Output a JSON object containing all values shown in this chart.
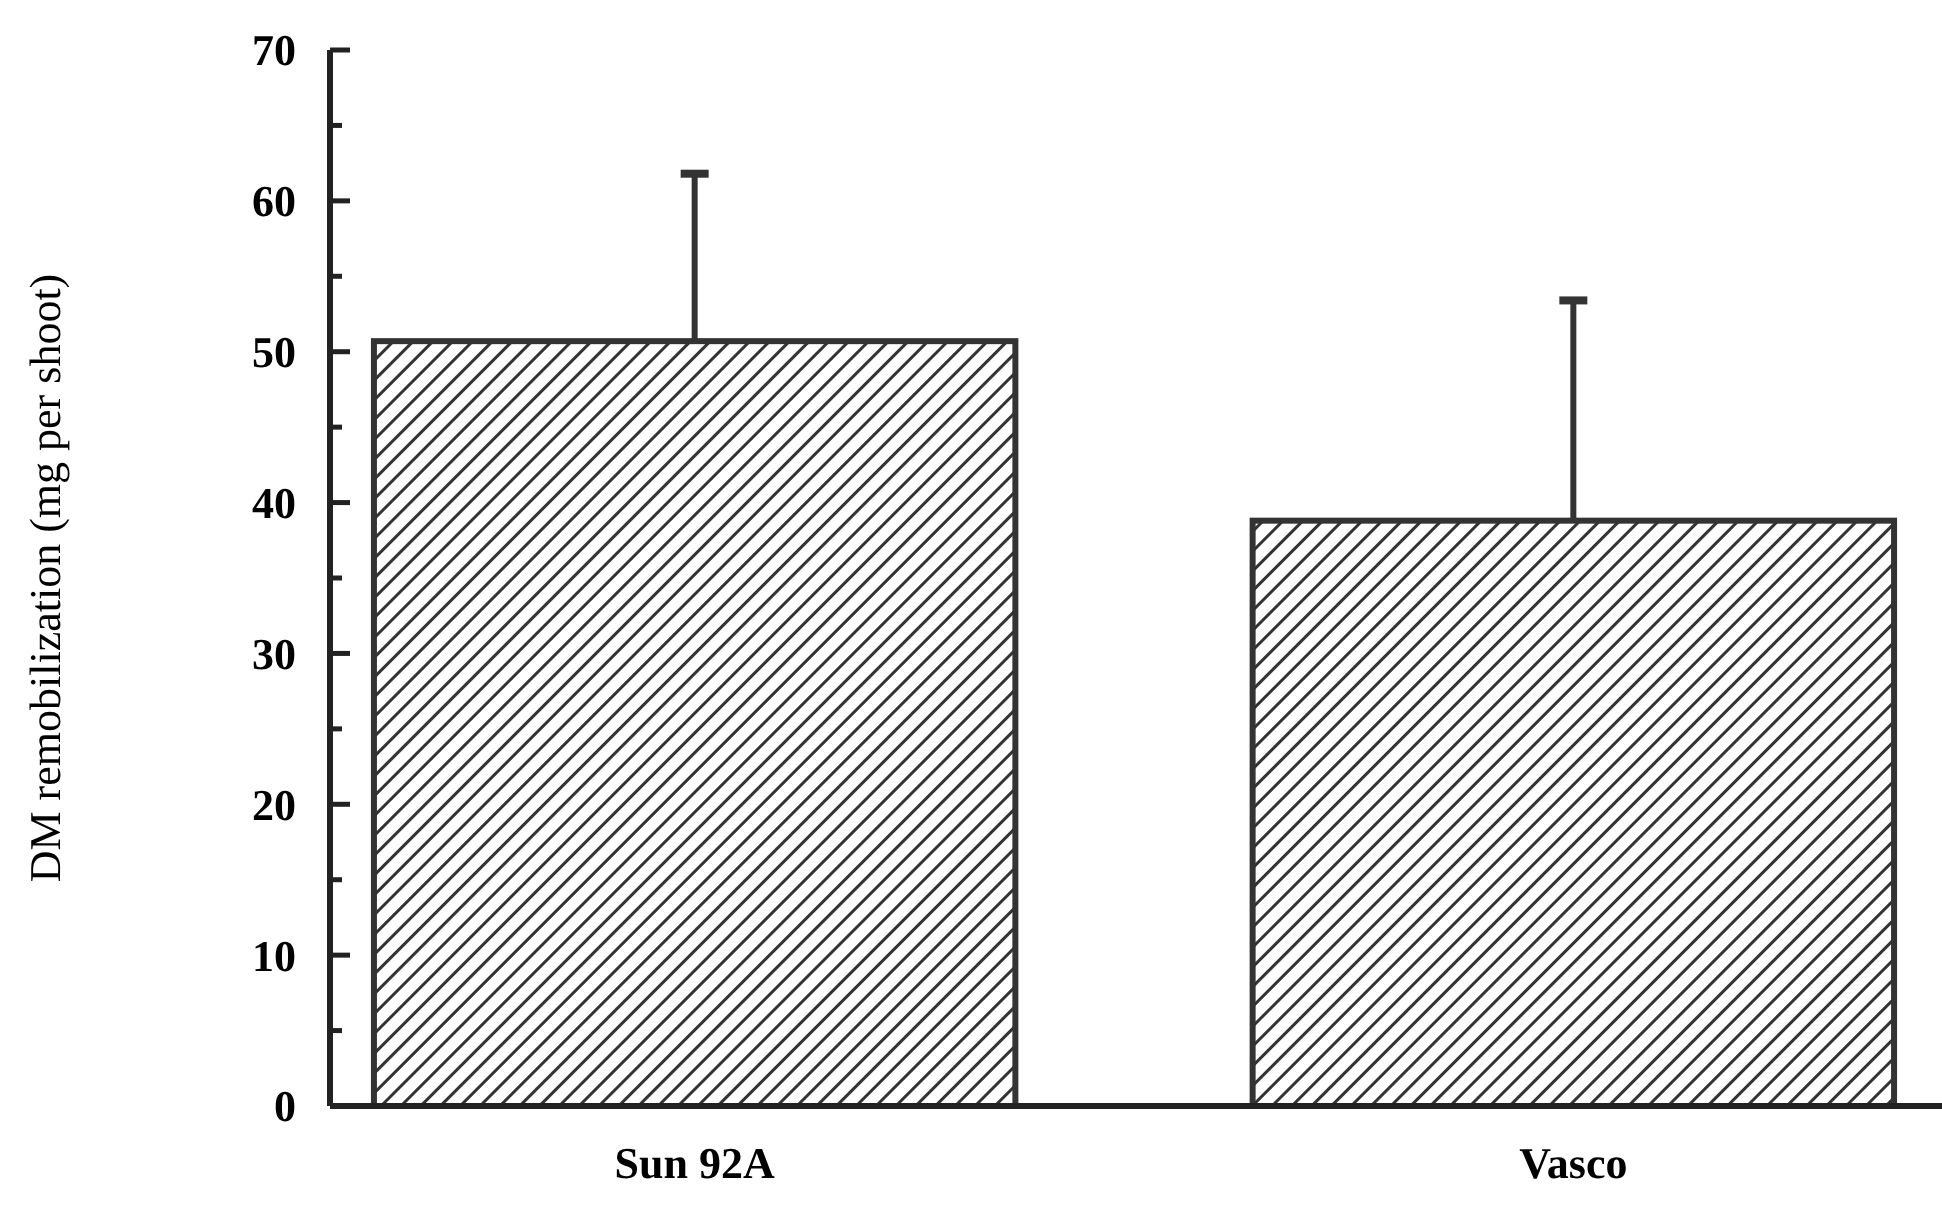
{
  "chart_data": {
    "type": "bar",
    "ylabel": "DM remobilization (mg per shoot)",
    "categories": [
      "Sun 92A",
      "Vasco"
    ],
    "values": [
      50.7,
      38.8
    ],
    "errors": [
      [
        50.7,
        61.8
      ],
      [
        38.8,
        53.4
      ]
    ],
    "color": "#333333",
    "ylim": [
      0,
      70
    ],
    "yticks": [
      0,
      {
        "value": 5,
        "label": null
      },
      10,
      {
        "value": 15,
        "label": null
      },
      20,
      {
        "value": 25,
        "label": null
      },
      30,
      {
        "value": 35,
        "label": null
      },
      40,
      {
        "value": 45,
        "label": null
      },
      50,
      {
        "value": 55,
        "label": null
      },
      60,
      {
        "value": 65,
        "label": null
      },
      70
    ],
    "grid": false
  }
}
